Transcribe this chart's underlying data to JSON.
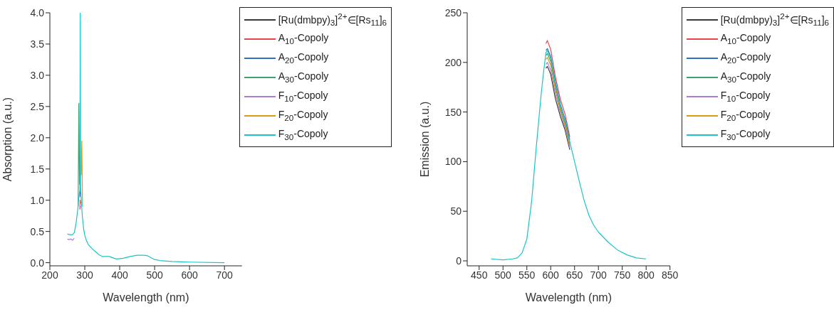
{
  "chart_data": [
    {
      "type": "line",
      "xlabel": "Wavelength (nm)",
      "ylabel": "Absorption (a.u.)",
      "xlim": [
        200,
        750
      ],
      "xticks": [
        200,
        300,
        400,
        500,
        600,
        700
      ],
      "ylim": [
        -0.05,
        4.0
      ],
      "yticks": [
        {
          "value": 0,
          "label": "0.0"
        },
        0.5,
        {
          "value": 1,
          "label": "1.0"
        },
        1.5,
        {
          "value": 2,
          "label": "2.0"
        },
        2.5,
        {
          "value": 3,
          "label": "3.0"
        },
        3.5,
        {
          "value": 4,
          "label": "4.0"
        }
      ],
      "legend": "top right",
      "marker": "none",
      "x": [
        250,
        255,
        260,
        265,
        270,
        275,
        280,
        284,
        286,
        287,
        288,
        290,
        293,
        297,
        300,
        305,
        310,
        320,
        330,
        340,
        350,
        370,
        390,
        410,
        430,
        450,
        470,
        480,
        500,
        520,
        550,
        600,
        700
      ],
      "series": [
        {
          "name": "[Ru(dmbpy)$_{3}$]$^{2+}$∈[Rs$_{11}$]$_{6}$",
          "color": "#3a3a3a",
          "values": [
            null,
            null,
            null,
            null,
            null,
            null,
            null,
            null,
            null,
            null,
            null,
            null,
            null,
            null,
            null,
            null,
            null,
            null,
            null,
            null,
            null,
            null,
            null,
            null,
            null,
            null,
            null,
            null,
            null,
            null,
            null,
            null,
            null
          ]
        },
        {
          "name": "A$_{10}$-Copoly",
          "color": "#e8424a",
          "values": [
            null,
            null,
            null,
            null,
            null,
            null,
            null,
            null,
            0.85,
            1.0,
            0.95,
            null,
            null,
            null,
            null,
            null,
            null,
            null,
            null,
            null,
            null,
            null,
            null,
            null,
            null,
            null,
            null,
            null,
            null,
            null,
            null,
            null,
            null
          ]
        },
        {
          "name": "A$_{20}$-Copoly",
          "color": "#2f6fc4",
          "values": [
            null,
            null,
            null,
            null,
            null,
            null,
            null,
            null,
            1.05,
            1.2,
            1.1,
            null,
            null,
            null,
            null,
            null,
            null,
            null,
            null,
            null,
            null,
            null,
            null,
            null,
            null,
            null,
            null,
            null,
            null,
            null,
            null,
            null,
            null
          ]
        },
        {
          "name": "A$_{30}$-Copoly",
          "color": "#3aa36a",
          "x": [
            281,
            283,
            285
          ],
          "values": [
            0.9,
            2.55,
            1.25
          ]
        },
        {
          "name": "F$_{10}$-Copoly",
          "color": "#b07ad8",
          "values": [
            0.38,
            0.37,
            0.38,
            0.36,
            0.39,
            null,
            null,
            null,
            0.9,
            0.93,
            0.88,
            null,
            null,
            null,
            null,
            null,
            null,
            null,
            null,
            null,
            null,
            null,
            null,
            null,
            null,
            null,
            null,
            null,
            null,
            null,
            null,
            null,
            null
          ]
        },
        {
          "name": "F$_{20}$-Copoly",
          "color": "#d89a12",
          "x": [
            289.5,
            291.5,
            293.5
          ],
          "values": [
            1.4,
            1.95,
            0.9
          ]
        },
        {
          "name": "F$_{30}$-Copoly",
          "color": "#19c4c8",
          "values": [
            0.46,
            0.45,
            0.45,
            0.45,
            0.48,
            0.63,
            0.86,
            1.1,
            1.15,
            4.0,
            1.2,
            1.0,
            0.74,
            0.53,
            0.44,
            0.35,
            0.29,
            0.23,
            0.18,
            0.13,
            0.1,
            0.1,
            0.06,
            0.07,
            0.1,
            0.12,
            0.12,
            0.11,
            0.05,
            0.03,
            0.02,
            0.01,
            0.0
          ]
        }
      ]
    },
    {
      "type": "line",
      "xlabel": "Wavelength (nm)",
      "ylabel": "Emission (a.u.)",
      "xlim": [
        425,
        850
      ],
      "xticks": [
        450,
        500,
        550,
        600,
        650,
        700,
        750,
        800,
        850
      ],
      "ylim": [
        -5,
        250
      ],
      "yticks": [
        0,
        50,
        100,
        150,
        200,
        250
      ],
      "legend": "top right",
      "marker": "none",
      "x": [
        475,
        500,
        520,
        530,
        540,
        550,
        560,
        570,
        580,
        585,
        590,
        593,
        600,
        610,
        620,
        630,
        640,
        650,
        660,
        670,
        680,
        690,
        700,
        720,
        740,
        760,
        780,
        800
      ],
      "series": [
        {
          "name": "[Ru(dmbpy)$_{3}$]$^{2+}$∈[Rs$_{11}$]$_{6}$",
          "color": "#3a3a3a",
          "values": [
            null,
            null,
            null,
            null,
            null,
            null,
            null,
            null,
            null,
            null,
            194,
            196,
            188,
            163,
            146,
            132,
            112,
            null,
            null,
            null,
            null,
            null,
            null,
            null,
            null,
            null,
            null,
            null
          ]
        },
        {
          "name": "A$_{10}$-Copoly",
          "color": "#e8424a",
          "values": [
            null,
            null,
            null,
            null,
            null,
            null,
            null,
            null,
            null,
            null,
            219,
            222,
            213,
            185,
            163,
            148,
            125,
            null,
            null,
            null,
            null,
            null,
            null,
            null,
            null,
            null,
            null,
            null
          ]
        },
        {
          "name": "A$_{20}$-Copoly",
          "color": "#2f6fc4",
          "values": [
            null,
            null,
            null,
            null,
            null,
            null,
            null,
            null,
            null,
            null,
            212,
            214,
            206,
            180,
            158,
            143,
            122,
            null,
            null,
            null,
            null,
            null,
            null,
            null,
            null,
            null,
            null,
            null
          ]
        },
        {
          "name": "A$_{30}$-Copoly",
          "color": "#3aa36a",
          "values": [
            null,
            null,
            null,
            null,
            null,
            null,
            null,
            null,
            null,
            null,
            207,
            209,
            201,
            175,
            154,
            139,
            118,
            null,
            null,
            null,
            null,
            null,
            null,
            null,
            null,
            null,
            null,
            null
          ]
        },
        {
          "name": "F$_{10}$-Copoly",
          "color": "#b07ad8",
          "values": [
            null,
            null,
            null,
            null,
            null,
            null,
            null,
            null,
            null,
            null,
            198,
            200,
            192,
            168,
            150,
            135,
            114,
            null,
            null,
            null,
            null,
            null,
            null,
            null,
            null,
            null,
            null,
            null
          ]
        },
        {
          "name": "F$_{20}$-Copoly",
          "color": "#d89a12",
          "values": [
            null,
            null,
            null,
            null,
            null,
            null,
            null,
            null,
            null,
            null,
            203,
            205,
            197,
            172,
            152,
            137,
            116,
            null,
            null,
            null,
            null,
            null,
            null,
            null,
            null,
            null,
            null,
            null
          ]
        },
        {
          "name": "F$_{30}$-Copoly",
          "color": "#19c4c8",
          "values": [
            2,
            1,
            2,
            3,
            8,
            22,
            60,
            116,
            168,
            190,
            210,
            212,
            204,
            178,
            156,
            141,
            120,
            100,
            80,
            61,
            46,
            36,
            29,
            19,
            11,
            6,
            3,
            2
          ]
        }
      ]
    }
  ]
}
